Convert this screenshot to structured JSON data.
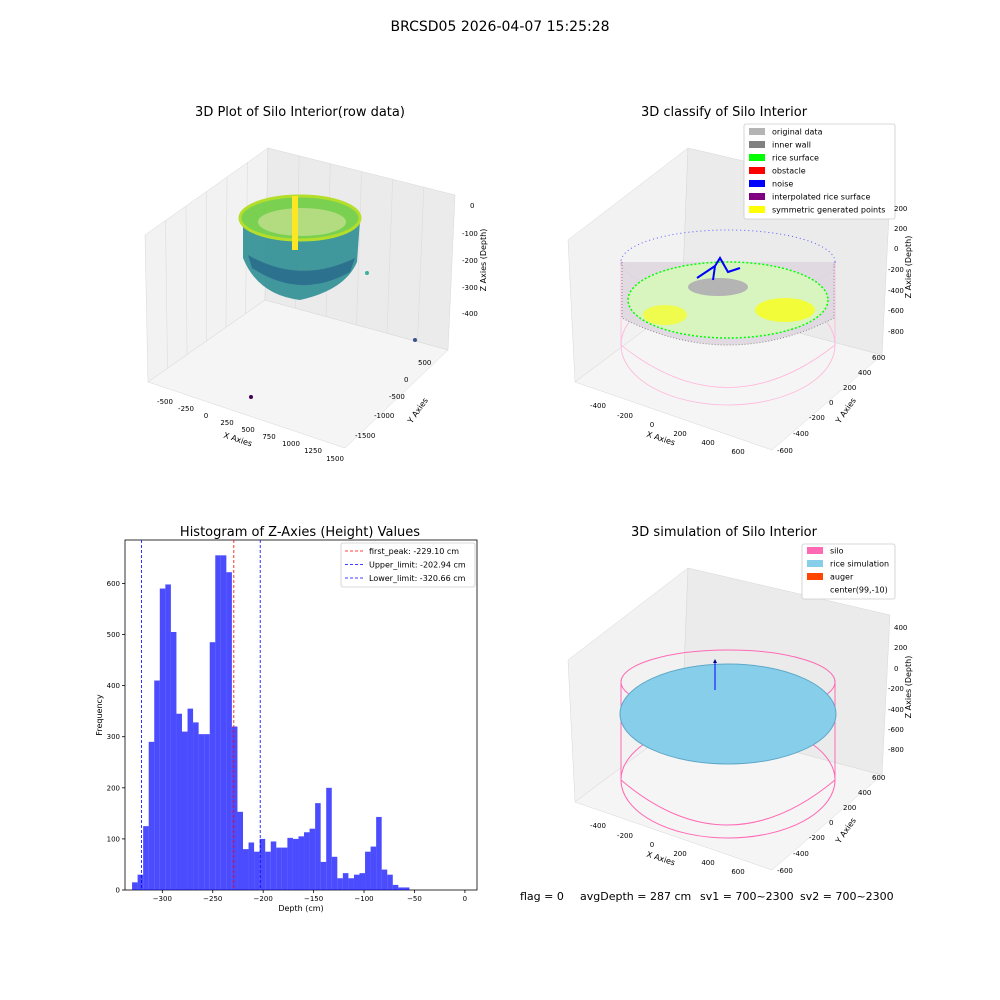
{
  "figure": {
    "suptitle": "BRCSD05 2026-04-07 15:25:28",
    "footer": {
      "flag": "flag = 0",
      "avg_depth": "avgDepth = 287 cm",
      "sv1": "sv1 = 700~2300",
      "sv2": "sv2 = 700~2300"
    }
  },
  "panels": {
    "raw": {
      "title": "3D Plot of Silo Interior(row data)",
      "xlabel": "X Axies",
      "ylabel": "Y Axies",
      "zlabel": "Z Axies (Depth)",
      "x_ticks": [
        "-500",
        "-250",
        "0",
        "250",
        "500",
        "750",
        "1000",
        "1250",
        "1500"
      ],
      "y_ticks": [
        "500",
        "0",
        "-500",
        "-1000",
        "-1500"
      ],
      "z_ticks": [
        "0",
        "-100",
        "-200",
        "-300",
        "-400"
      ]
    },
    "classify": {
      "title": "3D classify of Silo Interior",
      "xlabel": "X Axies",
      "ylabel": "Y Axies",
      "zlabel": "Z Axies (Depth)",
      "x_ticks": [
        "-400",
        "-200",
        "0",
        "200",
        "400",
        "600"
      ],
      "y_ticks": [
        "600",
        "400",
        "200",
        "0",
        "-200",
        "-400",
        "-600"
      ],
      "z_ticks": [
        "200",
        "0",
        "-200",
        "-400",
        "-600",
        "-800"
      ],
      "legend": [
        {
          "label": "original data",
          "color": "#b4b4b4"
        },
        {
          "label": "inner wall",
          "color": "#808080"
        },
        {
          "label": "rice surface",
          "color": "#00ff00"
        },
        {
          "label": "obstacle",
          "color": "#ff0000"
        },
        {
          "label": "noise",
          "color": "#0000ff"
        },
        {
          "label": "interpolated rice surface",
          "color": "#800080"
        },
        {
          "label": "symmetric generated points",
          "color": "#ffff00"
        }
      ]
    },
    "simulation": {
      "title": "3D simulation of Silo Interior",
      "xlabel": "X Axies",
      "ylabel": "Y Axies",
      "zlabel": "Z Axies (Depth)",
      "x_ticks": [
        "-400",
        "-200",
        "0",
        "200",
        "400",
        "600"
      ],
      "y_ticks": [
        "600",
        "400",
        "200",
        "0",
        "-200",
        "-400",
        "-600"
      ],
      "z_ticks": [
        "400",
        "200",
        "0",
        "-200",
        "-400",
        "-600",
        "-800"
      ],
      "legend": [
        {
          "label": "silo",
          "color": "#ff69b4"
        },
        {
          "label": "rice simulation",
          "color": "#87ceeb"
        },
        {
          "label": "auger",
          "color": "#ff4500"
        },
        {
          "label": "center(99,-10)",
          "color": "#ffffff"
        }
      ]
    }
  },
  "chart_data": {
    "type": "bar",
    "title": "Histogram of Z-Axies (Height) Values",
    "xlabel": "Depth (cm)",
    "ylabel": "Frequency",
    "bar_color": "#0000ff",
    "bar_alpha": 0.7,
    "xlim": [
      -337,
      12
    ],
    "ylim": [
      0,
      685
    ],
    "x_ticks": [
      -300,
      -250,
      -200,
      -150,
      -100,
      -50,
      0
    ],
    "y_ticks": [
      0,
      100,
      200,
      300,
      400,
      500,
      600
    ],
    "legend_position": "top-right",
    "bins": {
      "start": -330,
      "width": 5.5,
      "values": [
        15,
        30,
        125,
        290,
        410,
        590,
        598,
        505,
        345,
        310,
        355,
        328,
        305,
        305,
        485,
        655,
        655,
        622,
        320,
        153,
        80,
        93,
        75,
        100,
        75,
        95,
        83,
        83,
        102,
        100,
        105,
        113,
        120,
        170,
        55,
        200,
        65,
        23,
        33,
        23,
        30,
        33,
        75,
        85,
        143,
        40,
        30,
        10,
        5,
        5
      ]
    },
    "reference_lines": [
      {
        "label": "first_peak: -229.10 cm",
        "x": -229.1,
        "color": "#ff0000"
      },
      {
        "label": "Upper_limit: -202.94 cm",
        "x": -202.94,
        "color": "#0000ff"
      },
      {
        "label": "Lower_limit: -320.66 cm",
        "x": -320.66,
        "color": "#0000ff"
      }
    ]
  }
}
